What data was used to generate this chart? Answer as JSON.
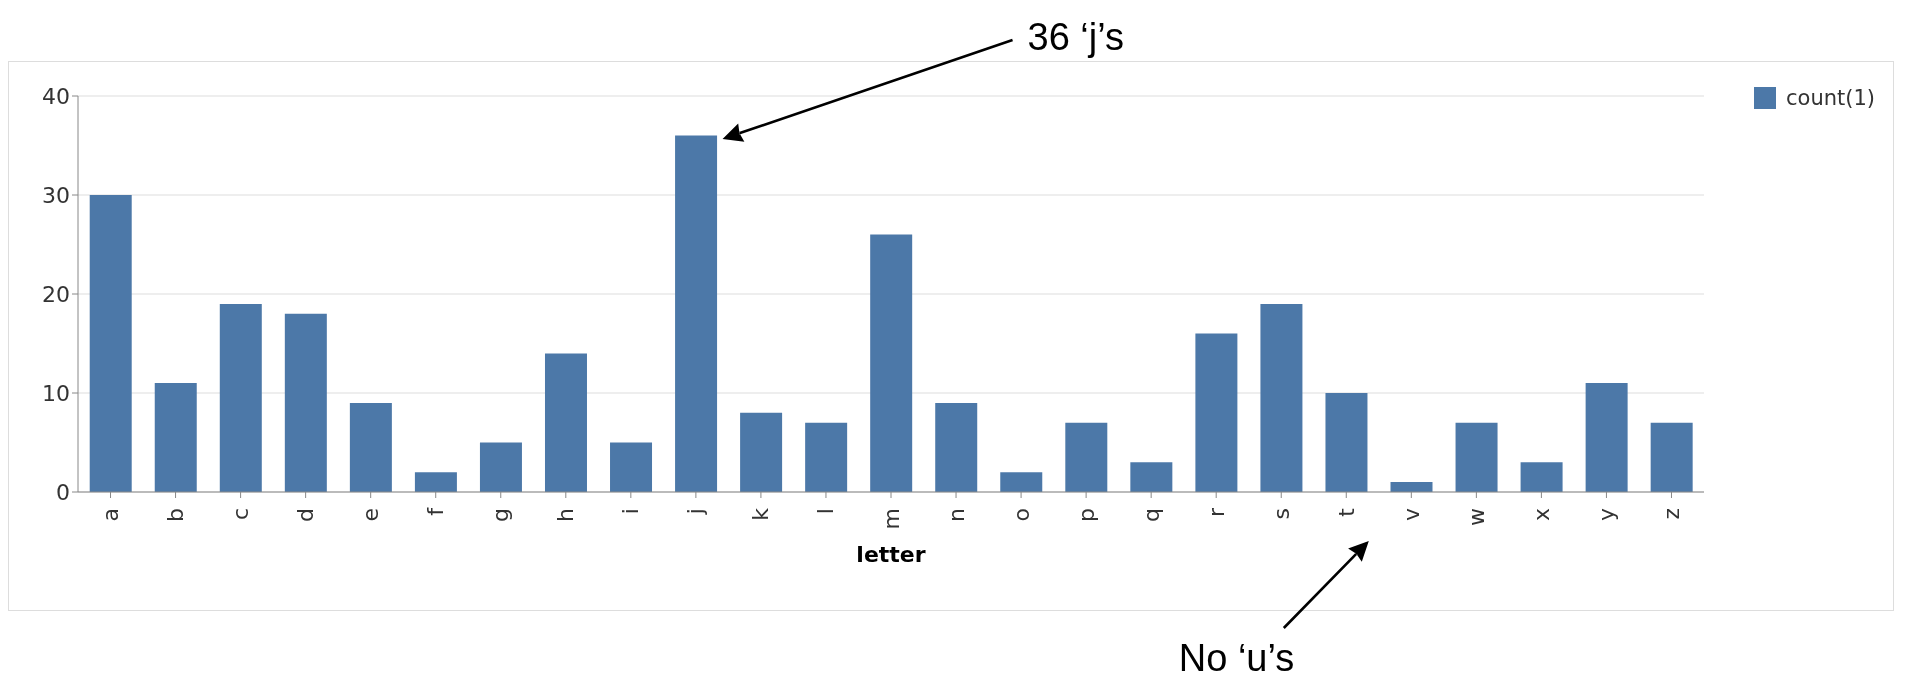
{
  "chart_data": {
    "type": "bar",
    "xlabel": "letter",
    "categories": [
      "a",
      "b",
      "c",
      "d",
      "e",
      "f",
      "g",
      "h",
      "i",
      "j",
      "k",
      "l",
      "m",
      "n",
      "o",
      "p",
      "q",
      "r",
      "s",
      "t",
      "v",
      "w",
      "x",
      "y",
      "z"
    ],
    "series": [
      {
        "name": "count(1)",
        "color": "#4c78a8",
        "values": [
          30,
          11,
          19,
          18,
          9,
          2,
          5,
          14,
          5,
          36,
          8,
          7,
          26,
          9,
          2,
          7,
          3,
          16,
          19,
          10,
          1,
          7,
          3,
          11,
          7
        ]
      }
    ],
    "ylim": [
      0,
      40
    ],
    "yticks": [
      0,
      10,
      20,
      30,
      40
    ],
    "grid": "y",
    "legend": "top right",
    "annotations": [
      "36 ‘j’s",
      "No ‘u’s"
    ]
  }
}
